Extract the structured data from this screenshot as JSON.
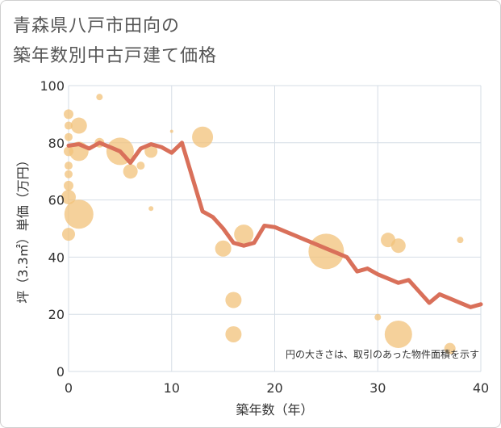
{
  "title_lines": [
    "青森県八戸市田向の",
    "築年数別中古戸建て価格"
  ],
  "chart_data": {
    "type": "scatter+line",
    "xlabel": "築年数（年）",
    "ylabel": "坪（3.3㎡）単価（万円）",
    "xlim": [
      0,
      40
    ],
    "ylim": [
      0,
      100
    ],
    "xticks": [
      0,
      10,
      20,
      30,
      40
    ],
    "yticks": [
      0,
      20,
      40,
      60,
      80,
      100
    ],
    "grid": true,
    "note": "円の大きさは、取引のあった物件面積を示す",
    "colors": {
      "line": "#d9705a",
      "bubble": "#f2c17a",
      "grid": "#d6dde6",
      "axis_text": "#333333"
    },
    "series": [
      {
        "type": "line",
        "x": [
          0,
          1,
          2,
          3,
          4,
          5,
          6,
          7,
          8,
          9,
          10,
          11,
          12,
          13,
          14,
          15,
          16,
          17,
          18,
          19,
          20,
          21,
          22,
          23,
          24,
          25,
          26,
          27,
          28,
          29,
          30,
          31,
          32,
          33,
          34,
          35,
          36,
          37,
          38,
          39,
          40
        ],
        "y": [
          79,
          79.5,
          78,
          80,
          78.5,
          77,
          73,
          78,
          79.5,
          78.5,
          76.5,
          80,
          68,
          56,
          54,
          50,
          45,
          44,
          45,
          51,
          50.5,
          49,
          47.5,
          46,
          44.5,
          43,
          41.5,
          40,
          35,
          36,
          34,
          32.5,
          31,
          32,
          28,
          24,
          27,
          25.5,
          24,
          22.5,
          23.5
        ]
      },
      {
        "type": "bubble",
        "points": [
          {
            "x": 0,
            "y": 90,
            "size": 6
          },
          {
            "x": 0,
            "y": 86,
            "size": 5
          },
          {
            "x": 0,
            "y": 82,
            "size": 5
          },
          {
            "x": 0,
            "y": 77,
            "size": 6
          },
          {
            "x": 0,
            "y": 72,
            "size": 5
          },
          {
            "x": 0,
            "y": 69,
            "size": 5
          },
          {
            "x": 0,
            "y": 65,
            "size": 6
          },
          {
            "x": 0,
            "y": 61,
            "size": 9
          },
          {
            "x": 0,
            "y": 48,
            "size": 8
          },
          {
            "x": 1,
            "y": 86,
            "size": 10
          },
          {
            "x": 1,
            "y": 77,
            "size": 12
          },
          {
            "x": 1,
            "y": 55,
            "size": 18
          },
          {
            "x": 3,
            "y": 96,
            "size": 4
          },
          {
            "x": 3,
            "y": 80,
            "size": 6
          },
          {
            "x": 5,
            "y": 77,
            "size": 17
          },
          {
            "x": 6,
            "y": 70,
            "size": 9
          },
          {
            "x": 7,
            "y": 72,
            "size": 5
          },
          {
            "x": 8,
            "y": 77,
            "size": 8
          },
          {
            "x": 8,
            "y": 57,
            "size": 3
          },
          {
            "x": 10,
            "y": 84,
            "size": 2
          },
          {
            "x": 13,
            "y": 82,
            "size": 13
          },
          {
            "x": 15,
            "y": 43,
            "size": 10
          },
          {
            "x": 16,
            "y": 25,
            "size": 10
          },
          {
            "x": 16,
            "y": 13,
            "size": 10
          },
          {
            "x": 17,
            "y": 48,
            "size": 12
          },
          {
            "x": 25,
            "y": 42,
            "size": 22
          },
          {
            "x": 30,
            "y": 19,
            "size": 4
          },
          {
            "x": 31,
            "y": 46,
            "size": 9
          },
          {
            "x": 32,
            "y": 44,
            "size": 9
          },
          {
            "x": 32,
            "y": 13,
            "size": 17
          },
          {
            "x": 37,
            "y": 8,
            "size": 7
          },
          {
            "x": 38,
            "y": 46,
            "size": 4
          }
        ]
      }
    ]
  }
}
